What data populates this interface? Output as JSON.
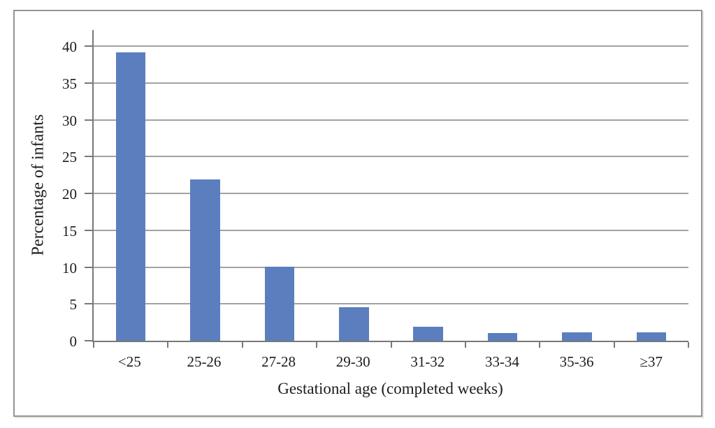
{
  "chart_data": {
    "type": "bar",
    "title": "",
    "xlabel": "Gestational age (completed weeks)",
    "ylabel": "Percentage of infants",
    "categories": [
      "<25",
      "25-26",
      "27-28",
      "29-30",
      "31-32",
      "33-34",
      "35-36",
      "≥37"
    ],
    "values": [
      39.2,
      21.9,
      10.1,
      4.6,
      1.9,
      1.0,
      1.1,
      1.1
    ],
    "yticks": [
      0,
      5,
      10,
      15,
      20,
      25,
      30,
      35,
      40
    ],
    "ylim": [
      0,
      42.2
    ],
    "grid": true,
    "legend": false,
    "colors": {
      "bar": "#5B7EBE",
      "gridline": "#A2A2A2",
      "axis": "#787878",
      "text": "#1C1C1C",
      "frame_border": "#949494"
    }
  }
}
